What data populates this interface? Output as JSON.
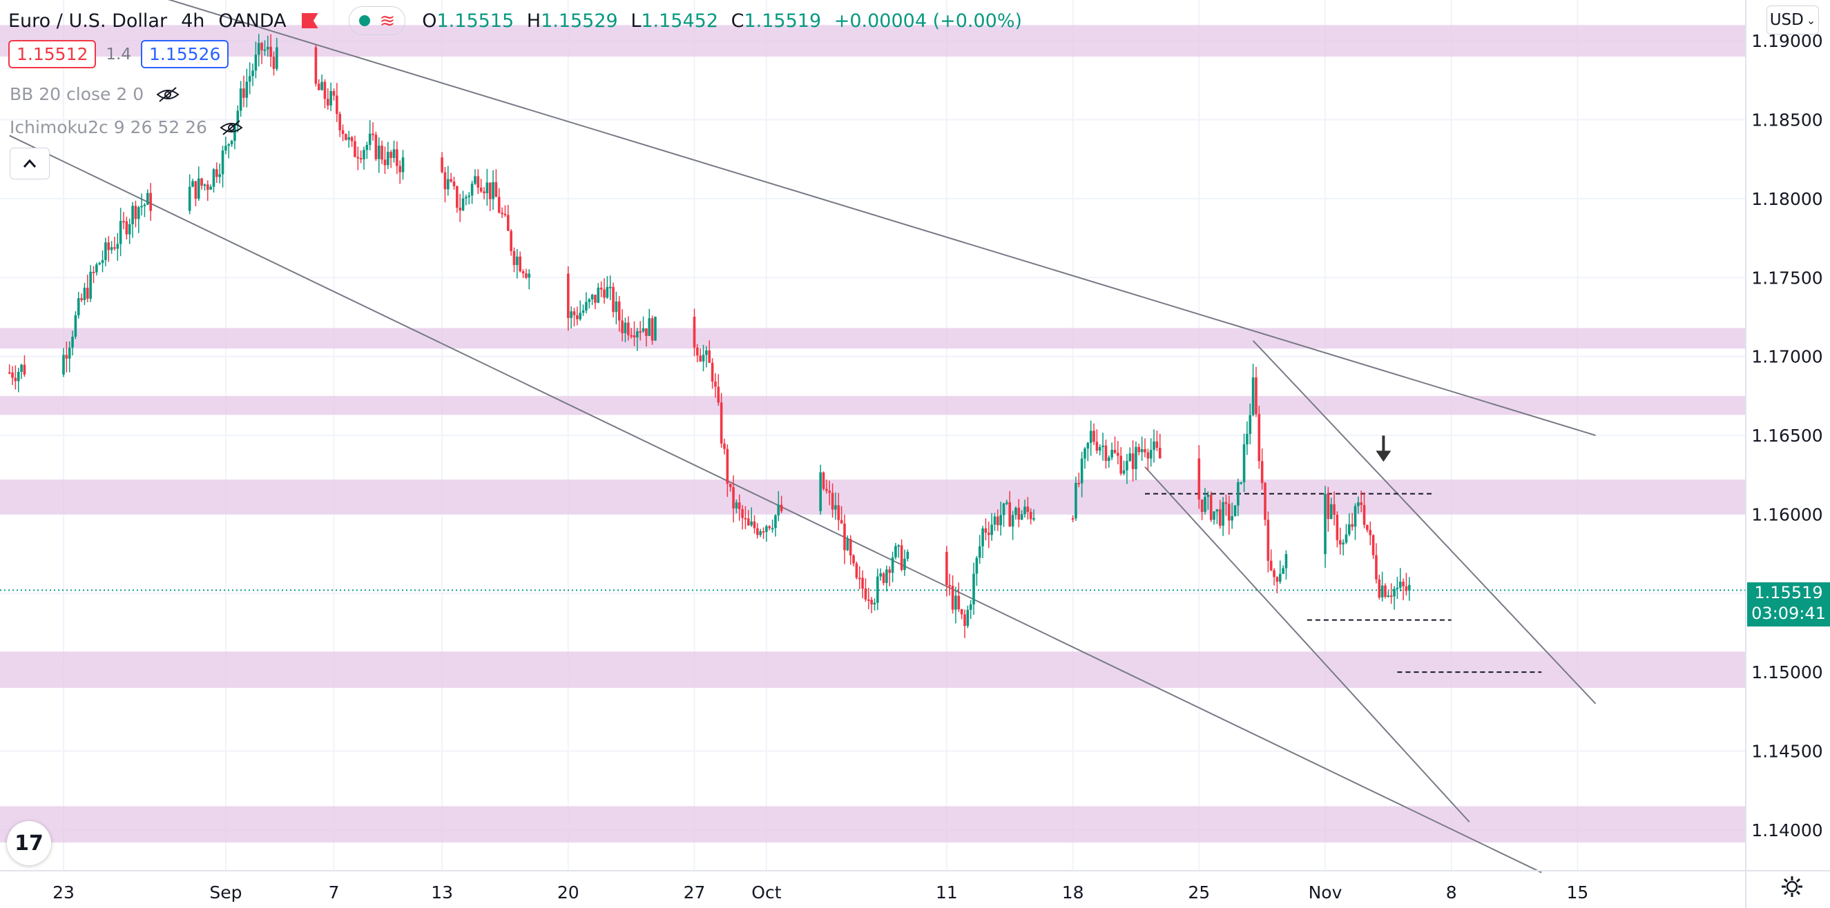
{
  "header": {
    "symbol": "Euro / U.S. Dollar",
    "interval": "4h",
    "exchange": "OANDA",
    "o_label": "O",
    "o_value": "1.15515",
    "h_label": "H",
    "h_value": "1.15529",
    "l_label": "L",
    "l_value": "1.15452",
    "c_label": "C",
    "c_value": "1.15519",
    "change": "+0.00004 (+0.00%)"
  },
  "trade": {
    "sell": "1.15512",
    "spread": "1.4",
    "buy": "1.15526"
  },
  "indicators": [
    {
      "label": "BB 20 close 2 0"
    },
    {
      "label": "Ichimoku2c 9 26 52 26"
    }
  ],
  "currency_button": "USD",
  "last_price": {
    "value": "1.15519",
    "countdown": "03:09:41"
  },
  "logo_text": "17",
  "colors": {
    "up": "#089981",
    "down": "#f23645",
    "zone": "#e6c8e8",
    "grid": "#f0f3fa"
  },
  "chart_data": {
    "type": "candlestick",
    "y_ticks": [
      "1.19000",
      "1.18500",
      "1.18000",
      "1.17500",
      "1.17000",
      "1.16500",
      "1.16000",
      "1.15500",
      "1.15000",
      "1.14500",
      "1.14000"
    ],
    "ylim": [
      1.1375,
      1.1925
    ],
    "x_ticks": [
      "23",
      "Sep",
      "7",
      "13",
      "20",
      "27",
      "Oct",
      "11",
      "18",
      "25",
      "Nov",
      "8",
      "15"
    ],
    "x_tick_dates": [
      "2021-08-23",
      "2021-09-01",
      "2021-09-07",
      "2021-09-13",
      "2021-09-20",
      "2021-09-27",
      "2021-10-01",
      "2021-10-11",
      "2021-10-18",
      "2021-10-25",
      "2021-11-01",
      "2021-11-08",
      "2021-11-15"
    ],
    "close_path": [
      [
        "2021-08-20",
        1.169
      ],
      [
        "2021-08-23",
        1.17
      ],
      [
        "2021-08-24",
        1.1735
      ],
      [
        "2021-08-25",
        1.176
      ],
      [
        "2021-08-26",
        1.1775
      ],
      [
        "2021-08-27",
        1.1795
      ],
      [
        "2021-08-30",
        1.1805
      ],
      [
        "2021-08-31",
        1.181
      ],
      [
        "2021-09-01",
        1.183
      ],
      [
        "2021-09-02",
        1.187
      ],
      [
        "2021-09-03",
        1.1895
      ],
      [
        "2021-09-06",
        1.187
      ],
      [
        "2021-09-07",
        1.186
      ],
      [
        "2021-09-08",
        1.183
      ],
      [
        "2021-09-09",
        1.1835
      ],
      [
        "2021-09-10",
        1.1825
      ],
      [
        "2021-09-13",
        1.1815
      ],
      [
        "2021-09-14",
        1.1795
      ],
      [
        "2021-09-15",
        1.1815
      ],
      [
        "2021-09-16",
        1.18
      ],
      [
        "2021-09-17",
        1.1765
      ],
      [
        "2021-09-20",
        1.1725
      ],
      [
        "2021-09-21",
        1.173
      ],
      [
        "2021-09-22",
        1.1745
      ],
      [
        "2021-09-23",
        1.172
      ],
      [
        "2021-09-24",
        1.172
      ],
      [
        "2021-09-27",
        1.171
      ],
      [
        "2021-09-28",
        1.169
      ],
      [
        "2021-09-29",
        1.161
      ],
      [
        "2021-09-30",
        1.159
      ],
      [
        "2021-10-01",
        1.1595
      ],
      [
        "2021-10-04",
        1.162
      ],
      [
        "2021-10-05",
        1.1598
      ],
      [
        "2021-10-06",
        1.1555
      ],
      [
        "2021-10-07",
        1.155
      ],
      [
        "2021-10-08",
        1.1575
      ],
      [
        "2021-10-11",
        1.1555
      ],
      [
        "2021-10-12",
        1.1528
      ],
      [
        "2021-10-13",
        1.159
      ],
      [
        "2021-10-14",
        1.16
      ],
      [
        "2021-10-15",
        1.16
      ],
      [
        "2021-10-18",
        1.1605
      ],
      [
        "2021-10-19",
        1.165
      ],
      [
        "2021-10-20",
        1.164
      ],
      [
        "2021-10-21",
        1.163
      ],
      [
        "2021-10-22",
        1.1645
      ],
      [
        "2021-10-25",
        1.161
      ],
      [
        "2021-10-26",
        1.16
      ],
      [
        "2021-10-27",
        1.16
      ],
      [
        "2021-10-28",
        1.168
      ],
      [
        "2021-10-29",
        1.1558
      ],
      [
        "2021-11-01",
        1.1608
      ],
      [
        "2021-11-02",
        1.158
      ],
      [
        "2021-11-03",
        1.1608
      ],
      [
        "2021-11-04",
        1.1555
      ],
      [
        "2021-11-05",
        1.1552
      ]
    ],
    "price_zones": [
      [
        1.189,
        1.191
      ],
      [
        1.1705,
        1.1718
      ],
      [
        1.1663,
        1.1675
      ],
      [
        1.16,
        1.1622
      ],
      [
        1.149,
        1.1513
      ],
      [
        1.1392,
        1.1415
      ]
    ],
    "trend_lines": [
      [
        [
          "2021-08-22",
          1.195
        ],
        [
          "2021-11-16",
          1.165
        ]
      ],
      [
        [
          "2021-08-20",
          1.184
        ],
        [
          "2021-11-13",
          1.1373
        ]
      ],
      [
        [
          "2021-10-28",
          1.171
        ],
        [
          "2021-11-16",
          1.148
        ]
      ],
      [
        [
          "2021-10-22",
          1.163
        ],
        [
          "2021-11-09",
          1.1405
        ]
      ]
    ],
    "dashed_levels": [
      [
        [
          "2021-10-22",
          1.1613
        ],
        [
          "2021-11-07",
          1.1613
        ]
      ],
      [
        [
          "2021-10-31",
          1.1533
        ],
        [
          "2021-11-08",
          1.1533
        ]
      ],
      [
        [
          "2021-11-05",
          1.15
        ],
        [
          "2021-11-13",
          1.15
        ]
      ]
    ],
    "arrow_marker": [
      "2021-11-05",
      1.1635
    ],
    "last_close": 1.15519
  }
}
